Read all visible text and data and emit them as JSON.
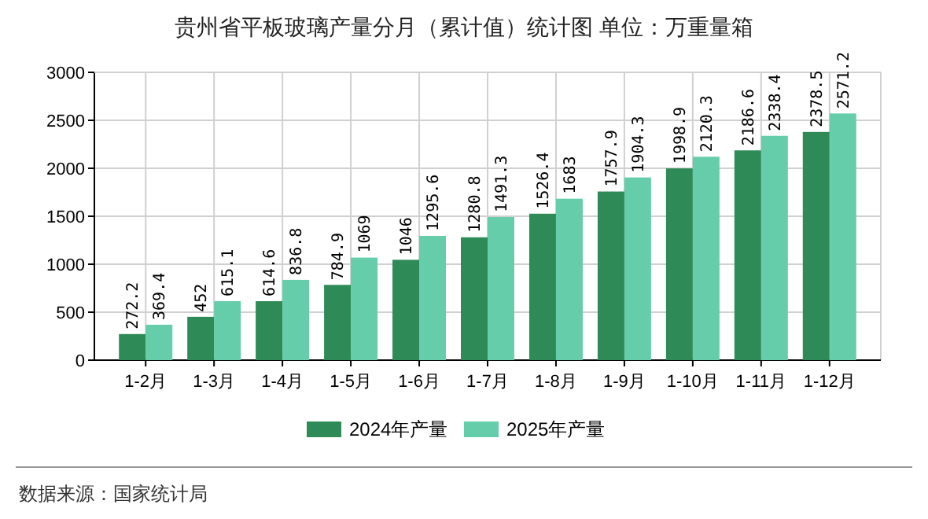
{
  "chart_data": {
    "type": "bar",
    "title": "贵州省平板玻璃产量分月（累计值）统计图 单位：万重量箱",
    "categories": [
      "1-2月",
      "1-3月",
      "1-4月",
      "1-5月",
      "1-6月",
      "1-7月",
      "1-8月",
      "1-9月",
      "1-10月",
      "1-11月",
      "1-12月"
    ],
    "series": [
      {
        "name": "2024年产量",
        "color": "#2e8b57",
        "values": [
          272.2,
          452,
          614.6,
          784.9,
          1046,
          1280.8,
          1526.4,
          1757.9,
          1998.9,
          2186.6,
          2378.5
        ]
      },
      {
        "name": "2025年产量",
        "color": "#66cdaa",
        "values": [
          369.4,
          615.1,
          836.8,
          1069,
          1295.6,
          1491.3,
          1683,
          1904.3,
          2120.3,
          2338.4,
          2571.2
        ]
      }
    ],
    "ylim": [
      0,
      3000
    ],
    "yticks": [
      0,
      500,
      1000,
      1500,
      2000,
      2500,
      3000
    ],
    "grid": true,
    "legend": "bottom",
    "data_labels": true,
    "annotations": [
      "数据来源：国家统计局"
    ]
  }
}
